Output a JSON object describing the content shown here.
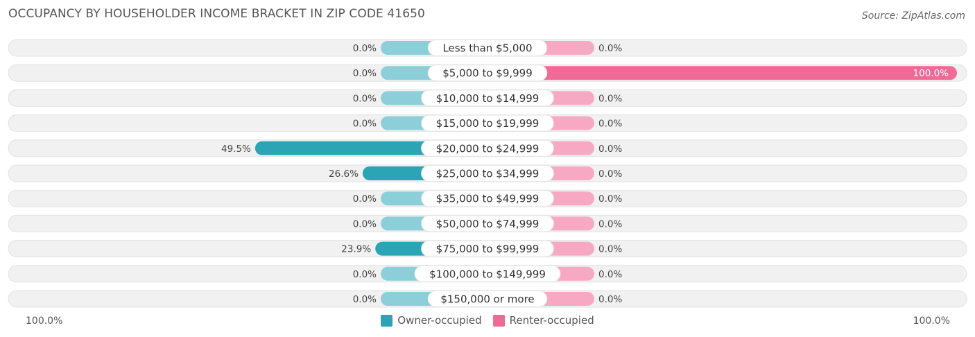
{
  "title": "OCCUPANCY BY HOUSEHOLDER INCOME BRACKET IN ZIP CODE 41650",
  "source": "Source: ZipAtlas.com",
  "colors": {
    "owner": "#2ba5b5",
    "owner_light": "#8dcfd8",
    "renter": "#f06a97",
    "renter_light": "#f7a9c3",
    "track": "#f0f0f0"
  },
  "axis": {
    "left_label": "100.0%",
    "right_label": "100.0%"
  },
  "legend": {
    "owner": "Owner-occupied",
    "renter": "Renter-occupied"
  },
  "chart_data": {
    "type": "bar",
    "orientation": "horizontal-diverging",
    "categories": [
      "Less than $5,000",
      "$5,000 to $9,999",
      "$10,000 to $14,999",
      "$15,000 to $19,999",
      "$20,000 to $24,999",
      "$25,000 to $34,999",
      "$35,000 to $49,999",
      "$50,000 to $74,999",
      "$75,000 to $99,999",
      "$100,000 to $149,999",
      "$150,000 or more"
    ],
    "series": [
      {
        "name": "Owner-occupied",
        "values": [
          0.0,
          0.0,
          0.0,
          0.0,
          49.5,
          26.6,
          0.0,
          0.0,
          23.9,
          0.0,
          0.0
        ],
        "labels": [
          "0.0%",
          "0.0%",
          "0.0%",
          "0.0%",
          "49.5%",
          "26.6%",
          "0.0%",
          "0.0%",
          "23.9%",
          "0.0%",
          "0.0%"
        ]
      },
      {
        "name": "Renter-occupied",
        "values": [
          0.0,
          100.0,
          0.0,
          0.0,
          0.0,
          0.0,
          0.0,
          0.0,
          0.0,
          0.0,
          0.0
        ],
        "labels": [
          "0.0%",
          "100.0%",
          "0.0%",
          "0.0%",
          "0.0%",
          "0.0%",
          "0.0%",
          "0.0%",
          "0.0%",
          "0.0%",
          "0.0%"
        ]
      }
    ],
    "xlim": [
      0,
      100
    ],
    "legend_position": "bottom-center"
  }
}
